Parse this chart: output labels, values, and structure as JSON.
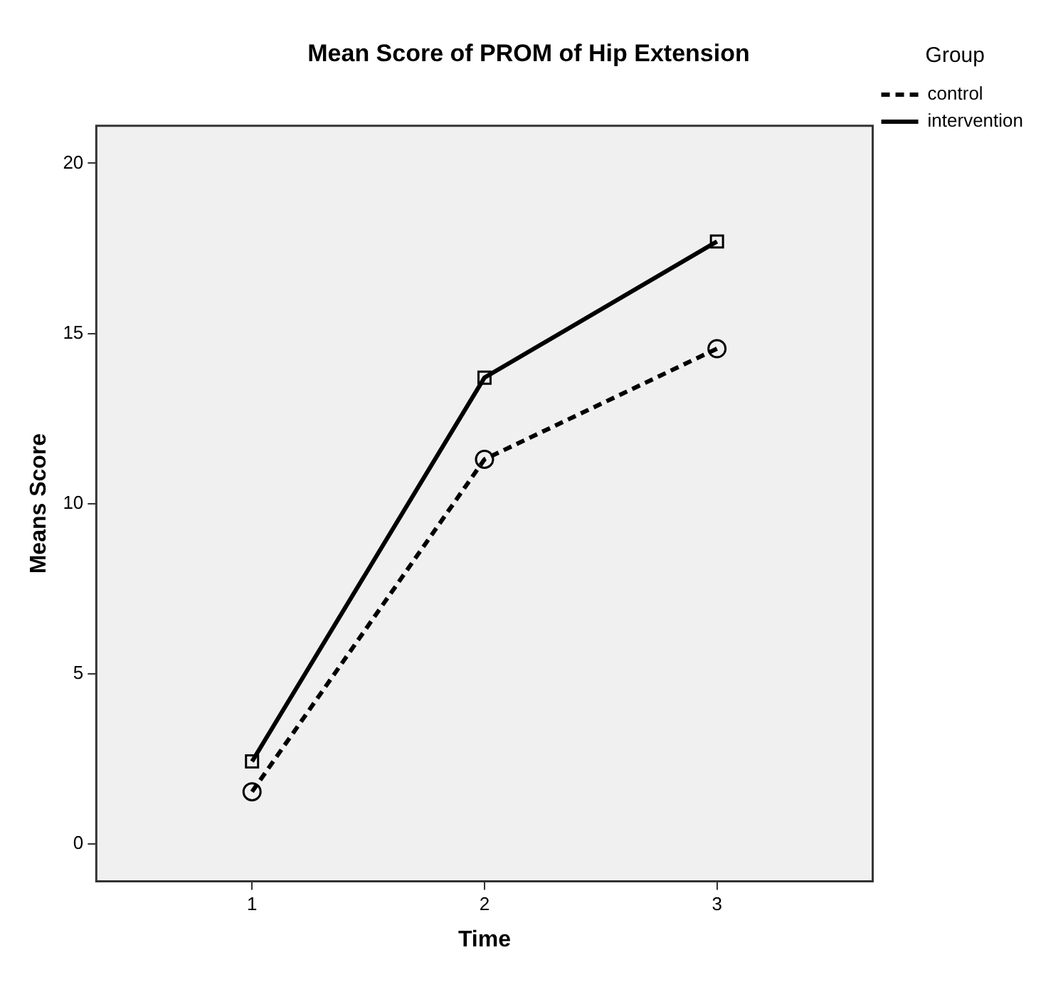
{
  "chart_data": {
    "type": "line",
    "title": "Mean Score of PROM of Hip Extension",
    "xlabel": "Time",
    "ylabel": "Means Score",
    "legend_title": "Group",
    "x": [
      1,
      2,
      3
    ],
    "series": [
      {
        "name": "control",
        "color": "#000000",
        "values": [
          1.53,
          11.3,
          14.55
        ],
        "line_style": "dashed",
        "marker": "circle"
      },
      {
        "name": "intervention",
        "color": "#000000",
        "values": [
          2.42,
          13.7,
          17.7
        ],
        "line_style": "solid",
        "marker": "square"
      }
    ],
    "xlim": [
      0.33,
      3.67
    ],
    "xticks": [
      1,
      2,
      3
    ],
    "ylim": [
      -1.1,
      21.1
    ],
    "yticks": [
      0,
      5,
      10,
      15,
      20
    ],
    "grid": false,
    "legend": "top right"
  }
}
